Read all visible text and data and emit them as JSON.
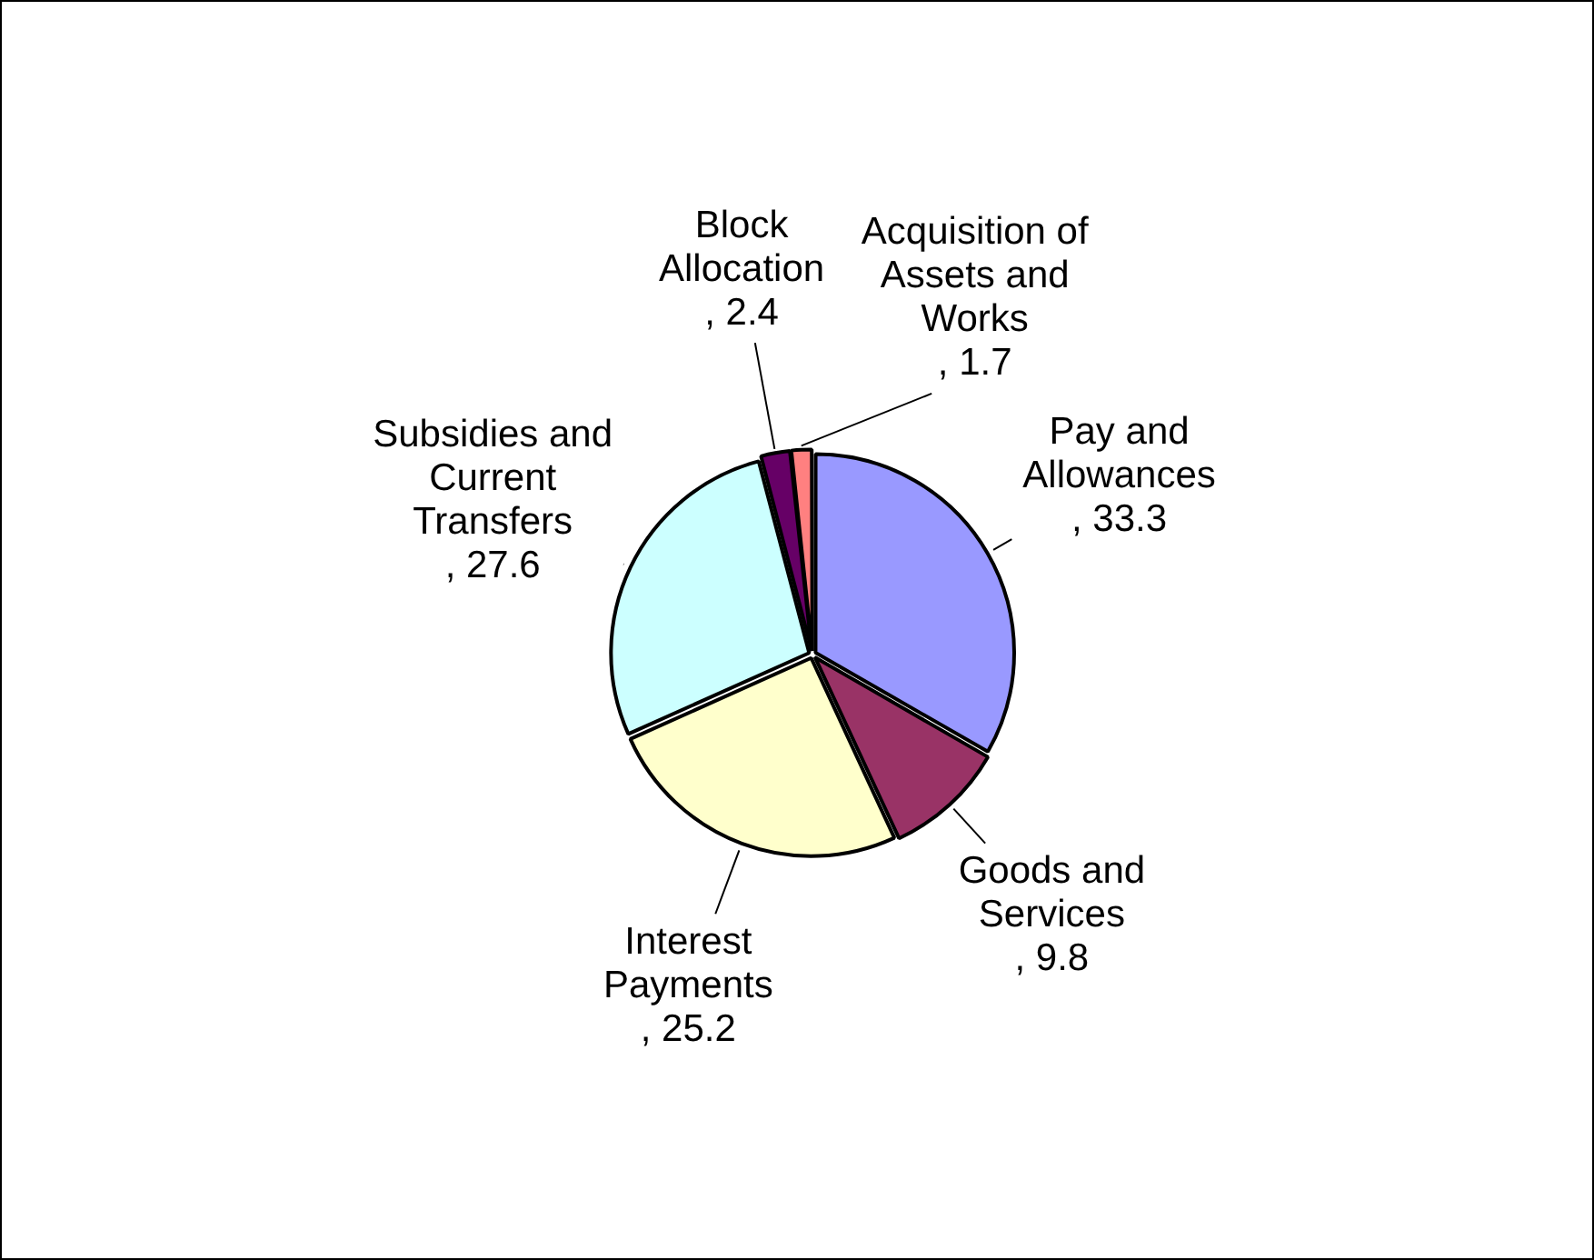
{
  "chart_data": {
    "type": "pie",
    "categories": [
      "Pay and Allowances",
      "Goods and Services",
      "Interest Payments",
      "Subsidies and Current Transfers",
      "Block Allocation",
      "Acquisition of Assets and Works"
    ],
    "values": [
      33.3,
      9.8,
      25.2,
      27.6,
      2.4,
      1.7
    ],
    "colors": [
      "#9999ff",
      "#993366",
      "#ffffcc",
      "#ccffff",
      "#660066",
      "#ff8080"
    ],
    "value_labels": [
      ", 33.3",
      ", 9.8",
      ", 25.2",
      ", 27.6",
      ", 2.4",
      ", 1.7"
    ]
  }
}
